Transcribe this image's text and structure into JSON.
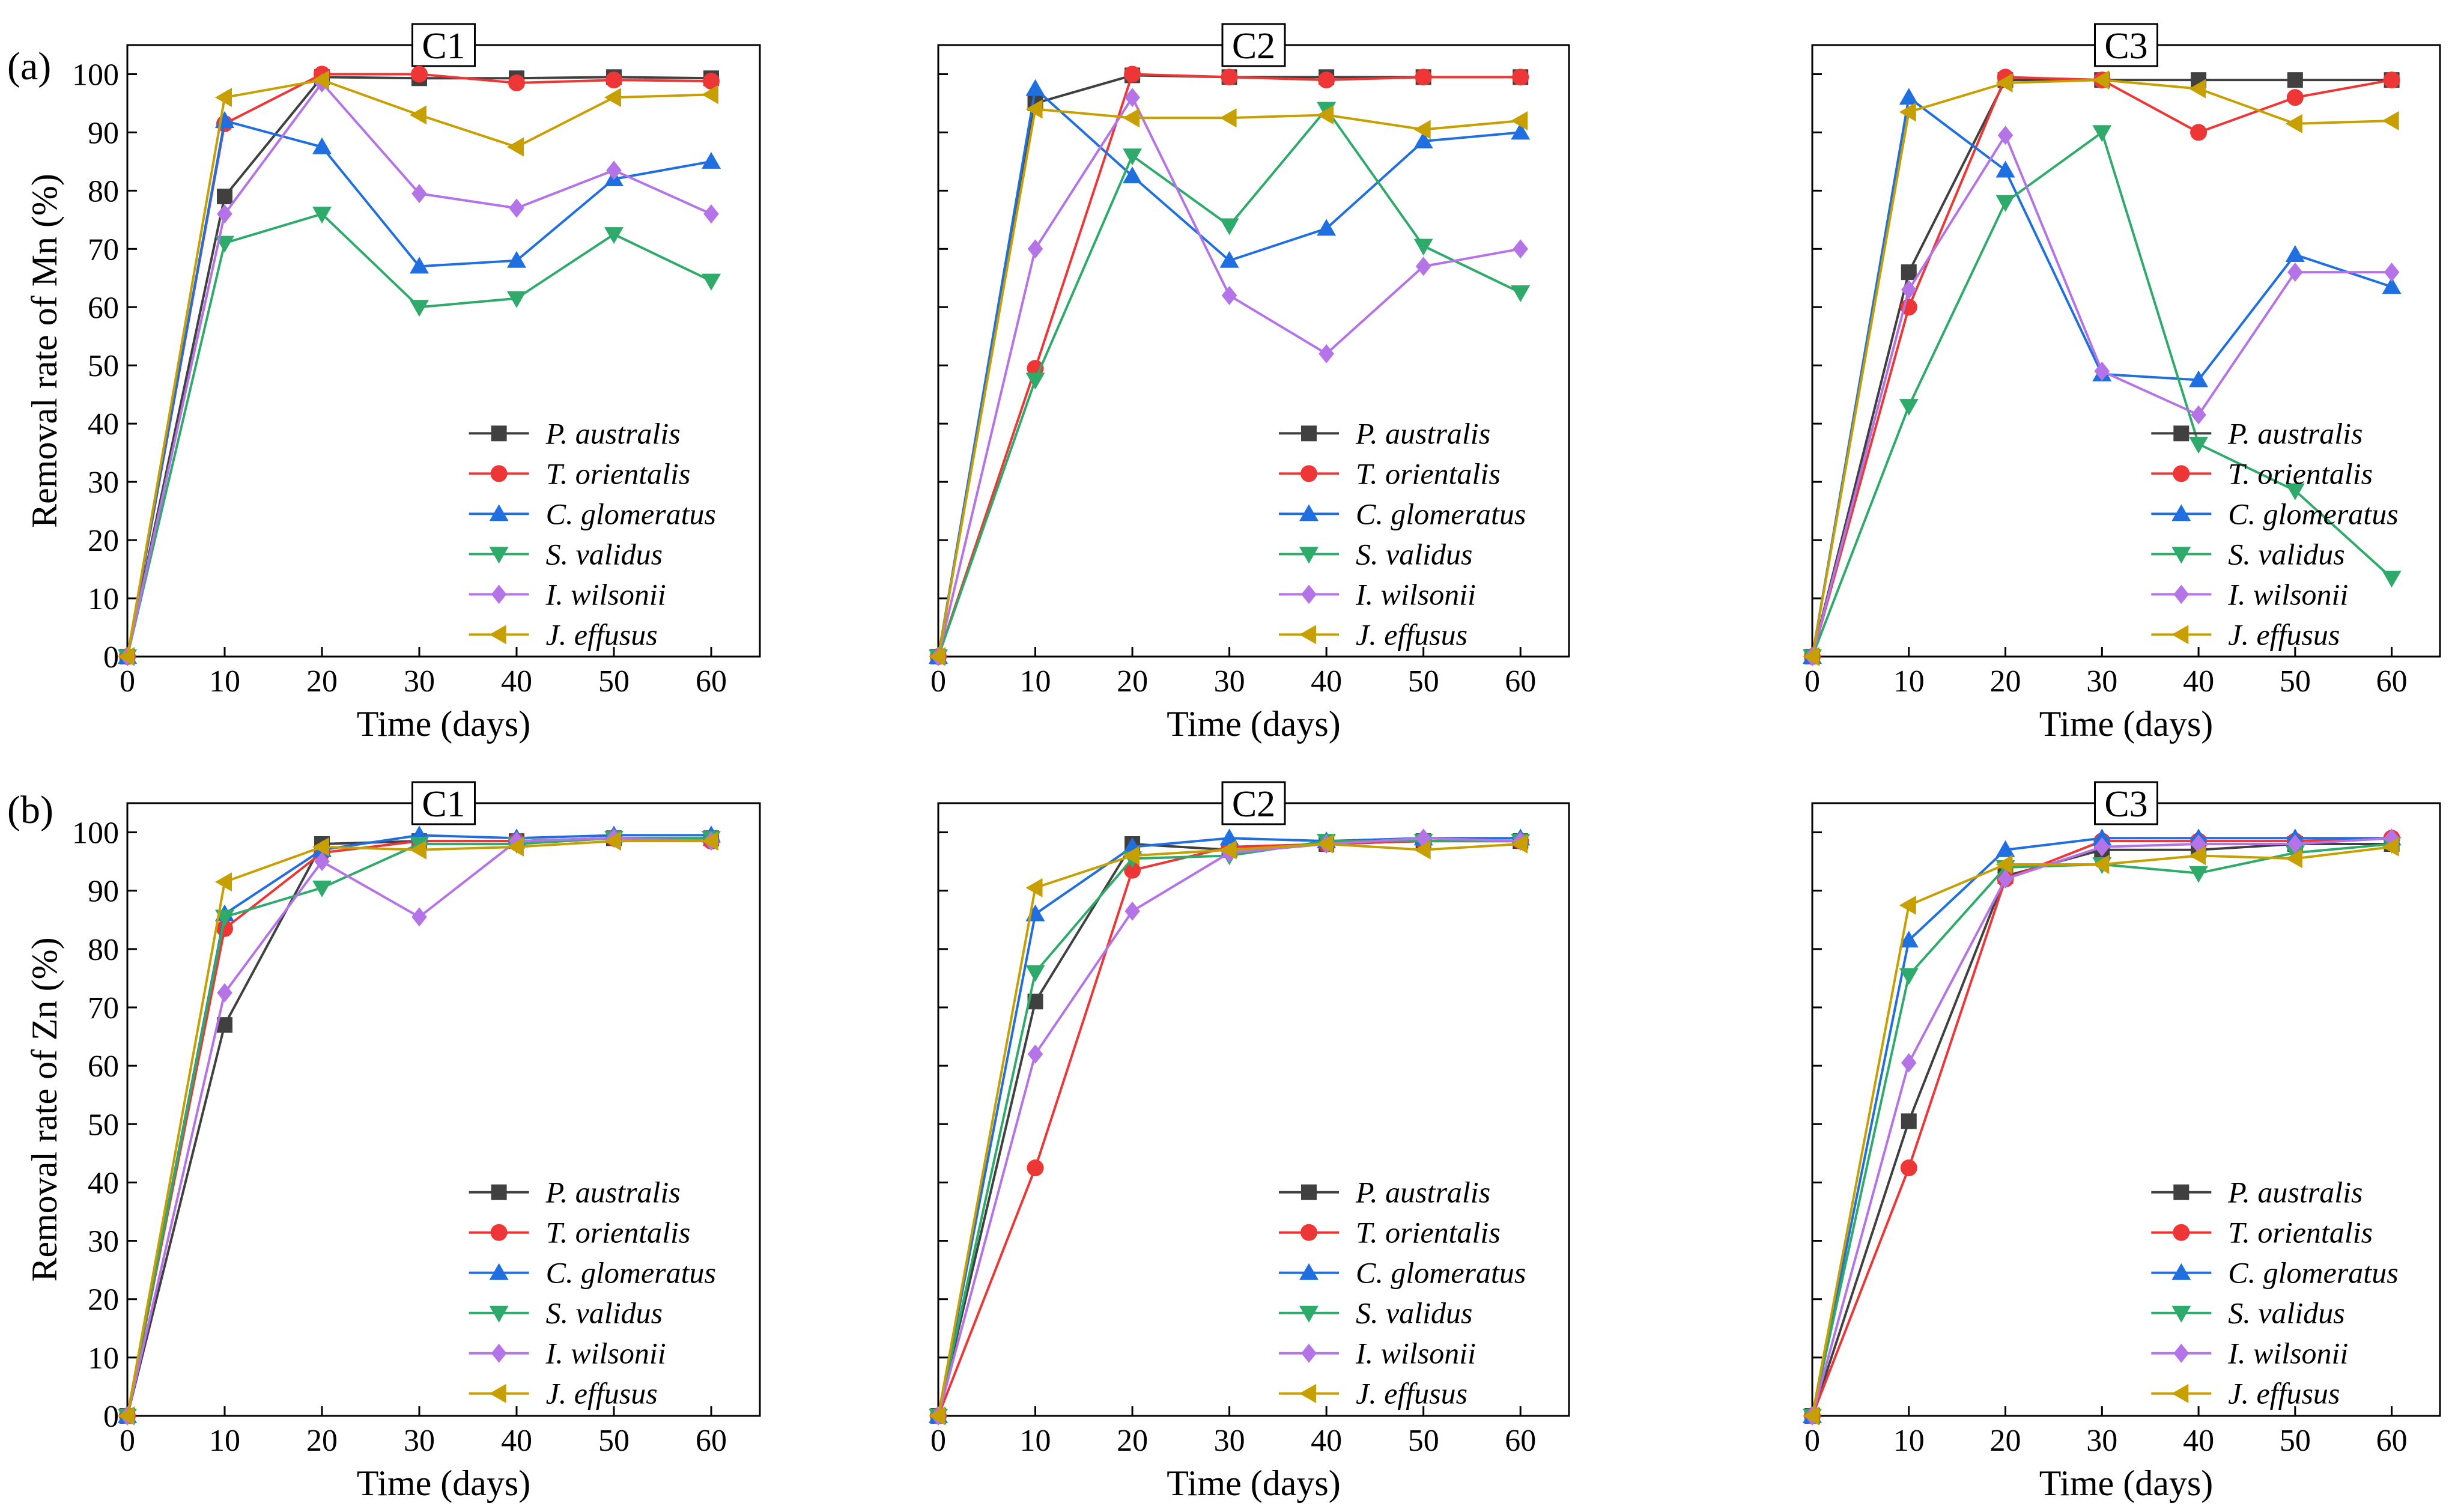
{
  "figure": {
    "row_labels": [
      "(a)",
      "(b)"
    ]
  },
  "styles": {
    "series": [
      {
        "name": "P. australis",
        "color": "#404040",
        "marker": "square"
      },
      {
        "name": "T. orientalis",
        "color": "#ee3636",
        "marker": "circle"
      },
      {
        "name": "C. glomeratus",
        "color": "#1f6fe0",
        "marker": "triangle-up"
      },
      {
        "name": "S. validus",
        "color": "#2eaa6a",
        "marker": "triangle-down"
      },
      {
        "name": "I. wilsonii",
        "color": "#b473e6",
        "marker": "diamond"
      },
      {
        "name": "J. effusus",
        "color": "#c7a000",
        "marker": "triangle-left"
      }
    ]
  },
  "chart_data": [
    {
      "type": "line",
      "row": 0,
      "col": 0,
      "title": "C1",
      "xlabel": "Time (days)",
      "ylabel": "Removal rate of Mn (%)",
      "xlim": [
        0,
        65
      ],
      "ylim": [
        0,
        105
      ],
      "x_ticks": [
        0,
        10,
        20,
        30,
        40,
        50,
        60
      ],
      "y_ticks": [
        0,
        10,
        20,
        30,
        40,
        50,
        60,
        70,
        80,
        90,
        100
      ],
      "x": [
        0,
        10,
        20,
        30,
        40,
        50,
        60
      ],
      "legend_position": "lower-right",
      "series": [
        {
          "name": "P. australis",
          "values": [
            0,
            79,
            99.5,
            99.3,
            99.3,
            99.5,
            99.3
          ]
        },
        {
          "name": "T. orientalis",
          "values": [
            0,
            91.5,
            100,
            100,
            98.5,
            99,
            98.8
          ]
        },
        {
          "name": "C. glomeratus",
          "values": [
            0,
            92,
            87.5,
            67,
            68,
            82,
            85
          ]
        },
        {
          "name": "S. validus",
          "values": [
            0,
            71,
            76,
            60,
            61.5,
            72.5,
            64.5
          ]
        },
        {
          "name": "I. wilsonii",
          "values": [
            0,
            76,
            98.5,
            79.5,
            77,
            83.5,
            76
          ]
        },
        {
          "name": "J. effusus",
          "values": [
            0,
            96,
            99,
            93,
            87.5,
            96,
            96.5
          ]
        }
      ]
    },
    {
      "type": "line",
      "row": 0,
      "col": 1,
      "title": "C2",
      "xlabel": "Time (days)",
      "ylabel": "",
      "xlim": [
        0,
        65
      ],
      "ylim": [
        0,
        105
      ],
      "x_ticks": [
        0,
        10,
        20,
        30,
        40,
        50,
        60
      ],
      "y_ticks": [],
      "x": [
        0,
        10,
        20,
        30,
        40,
        50,
        60
      ],
      "legend_position": "lower-right",
      "series": [
        {
          "name": "P. australis",
          "values": [
            0,
            95,
            99.8,
            99.5,
            99.5,
            99.5,
            99.5
          ]
        },
        {
          "name": "T. orientalis",
          "values": [
            0,
            49.5,
            100,
            99.5,
            99,
            99.5,
            99.5
          ]
        },
        {
          "name": "C. glomeratus",
          "values": [
            0,
            97.5,
            82.5,
            68,
            73.5,
            88.5,
            90
          ]
        },
        {
          "name": "S. validus",
          "values": [
            0,
            47.5,
            86,
            74,
            94,
            70.5,
            62.5
          ]
        },
        {
          "name": "I. wilsonii",
          "values": [
            0,
            70,
            96,
            62,
            52,
            67,
            70
          ]
        },
        {
          "name": "J. effusus",
          "values": [
            0,
            94,
            92.5,
            92.5,
            93,
            90.5,
            92
          ]
        }
      ]
    },
    {
      "type": "line",
      "row": 0,
      "col": 2,
      "title": "C3",
      "xlabel": "Time (days)",
      "ylabel": "",
      "xlim": [
        0,
        65
      ],
      "ylim": [
        0,
        105
      ],
      "x_ticks": [
        0,
        10,
        20,
        30,
        40,
        50,
        60
      ],
      "y_ticks": [],
      "x": [
        0,
        10,
        20,
        30,
        40,
        50,
        60
      ],
      "legend_position": "lower-right",
      "series": [
        {
          "name": "P. australis",
          "values": [
            0,
            66,
            99,
            99,
            99,
            99,
            99
          ]
        },
        {
          "name": "T. orientalis",
          "values": [
            0,
            60,
            99.5,
            99,
            90,
            96,
            99
          ]
        },
        {
          "name": "C. glomeratus",
          "values": [
            0,
            96,
            83.5,
            48.5,
            47.5,
            69,
            63.5
          ]
        },
        {
          "name": "S. validus",
          "values": [
            0,
            43,
            78,
            90,
            36.5,
            28.5,
            13.5
          ]
        },
        {
          "name": "I. wilsonii",
          "values": [
            0,
            63,
            89.5,
            49,
            41.5,
            66,
            66
          ]
        },
        {
          "name": "J. effusus",
          "values": [
            0,
            93.5,
            98.5,
            99,
            97.5,
            91.5,
            92
          ]
        }
      ]
    },
    {
      "type": "line",
      "row": 1,
      "col": 0,
      "title": "C1",
      "xlabel": "Time (days)",
      "ylabel": "Removal rate of Zn (%)",
      "xlim": [
        0,
        65
      ],
      "ylim": [
        0,
        105
      ],
      "x_ticks": [
        0,
        10,
        20,
        30,
        40,
        50,
        60
      ],
      "y_ticks": [
        0,
        10,
        20,
        30,
        40,
        50,
        60,
        70,
        80,
        90,
        100
      ],
      "x": [
        0,
        10,
        20,
        30,
        40,
        50,
        60
      ],
      "legend_position": "lower-right",
      "series": [
        {
          "name": "P. australis",
          "values": [
            0,
            67,
            98,
            98.5,
            98.5,
            99,
            99
          ]
        },
        {
          "name": "T. orientalis",
          "values": [
            0,
            83.5,
            96.5,
            98.5,
            98.5,
            99,
            98.5
          ]
        },
        {
          "name": "C. glomeratus",
          "values": [
            0,
            86,
            97,
            99.5,
            99,
            99.5,
            99.5
          ]
        },
        {
          "name": "S. validus",
          "values": [
            0,
            85.5,
            90.5,
            98,
            98,
            99,
            99
          ]
        },
        {
          "name": "I. wilsonii",
          "values": [
            0,
            72.5,
            95,
            85.5,
            98.5,
            99,
            98.5
          ]
        },
        {
          "name": "J. effusus",
          "values": [
            0,
            91.5,
            97.5,
            97,
            97.5,
            98.5,
            98.5
          ]
        }
      ]
    },
    {
      "type": "line",
      "row": 1,
      "col": 1,
      "title": "C2",
      "xlabel": "Time (days)",
      "ylabel": "",
      "xlim": [
        0,
        65
      ],
      "ylim": [
        0,
        105
      ],
      "x_ticks": [
        0,
        10,
        20,
        30,
        40,
        50,
        60
      ],
      "y_ticks": [],
      "x": [
        0,
        10,
        20,
        30,
        40,
        50,
        60
      ],
      "legend_position": "lower-right",
      "series": [
        {
          "name": "P. australis",
          "values": [
            0,
            71,
            98,
            97,
            98,
            98.5,
            98.5
          ]
        },
        {
          "name": "T. orientalis",
          "values": [
            0,
            42.5,
            93.5,
            97.5,
            98,
            98.5,
            98.5
          ]
        },
        {
          "name": "C. glomeratus",
          "values": [
            0,
            86,
            97.5,
            99,
            98.5,
            99,
            99
          ]
        },
        {
          "name": "S. validus",
          "values": [
            0,
            76,
            95.5,
            96,
            98.5,
            98.5,
            98.5
          ]
        },
        {
          "name": "I. wilsonii",
          "values": [
            0,
            62,
            86.5,
            96.5,
            98,
            99,
            98.5
          ]
        },
        {
          "name": "J. effusus",
          "values": [
            0,
            90.5,
            96,
            97,
            98,
            97,
            98
          ]
        }
      ]
    },
    {
      "type": "line",
      "row": 1,
      "col": 2,
      "title": "C3",
      "xlabel": "Time (days)",
      "ylabel": "",
      "xlim": [
        0,
        65
      ],
      "ylim": [
        0,
        105
      ],
      "x_ticks": [
        0,
        10,
        20,
        30,
        40,
        50,
        60
      ],
      "y_ticks": [],
      "x": [
        0,
        10,
        20,
        30,
        40,
        50,
        60
      ],
      "legend_position": "lower-right",
      "series": [
        {
          "name": "P. australis",
          "values": [
            0,
            50.5,
            92.5,
            97,
            97,
            98,
            98
          ]
        },
        {
          "name": "T. orientalis",
          "values": [
            0,
            42.5,
            92,
            98.5,
            98.5,
            98.5,
            99
          ]
        },
        {
          "name": "C. glomeratus",
          "values": [
            0,
            81.5,
            97,
            99,
            99,
            99,
            99
          ]
        },
        {
          "name": "S. validus",
          "values": [
            0,
            75.5,
            94,
            94.5,
            93,
            96.5,
            98
          ]
        },
        {
          "name": "I. wilsonii",
          "values": [
            0,
            60.5,
            92,
            97.5,
            98,
            98,
            99
          ]
        },
        {
          "name": "J. effusus",
          "values": [
            0,
            87.5,
            94.5,
            94.5,
            96,
            95.5,
            97.5
          ]
        }
      ]
    }
  ]
}
